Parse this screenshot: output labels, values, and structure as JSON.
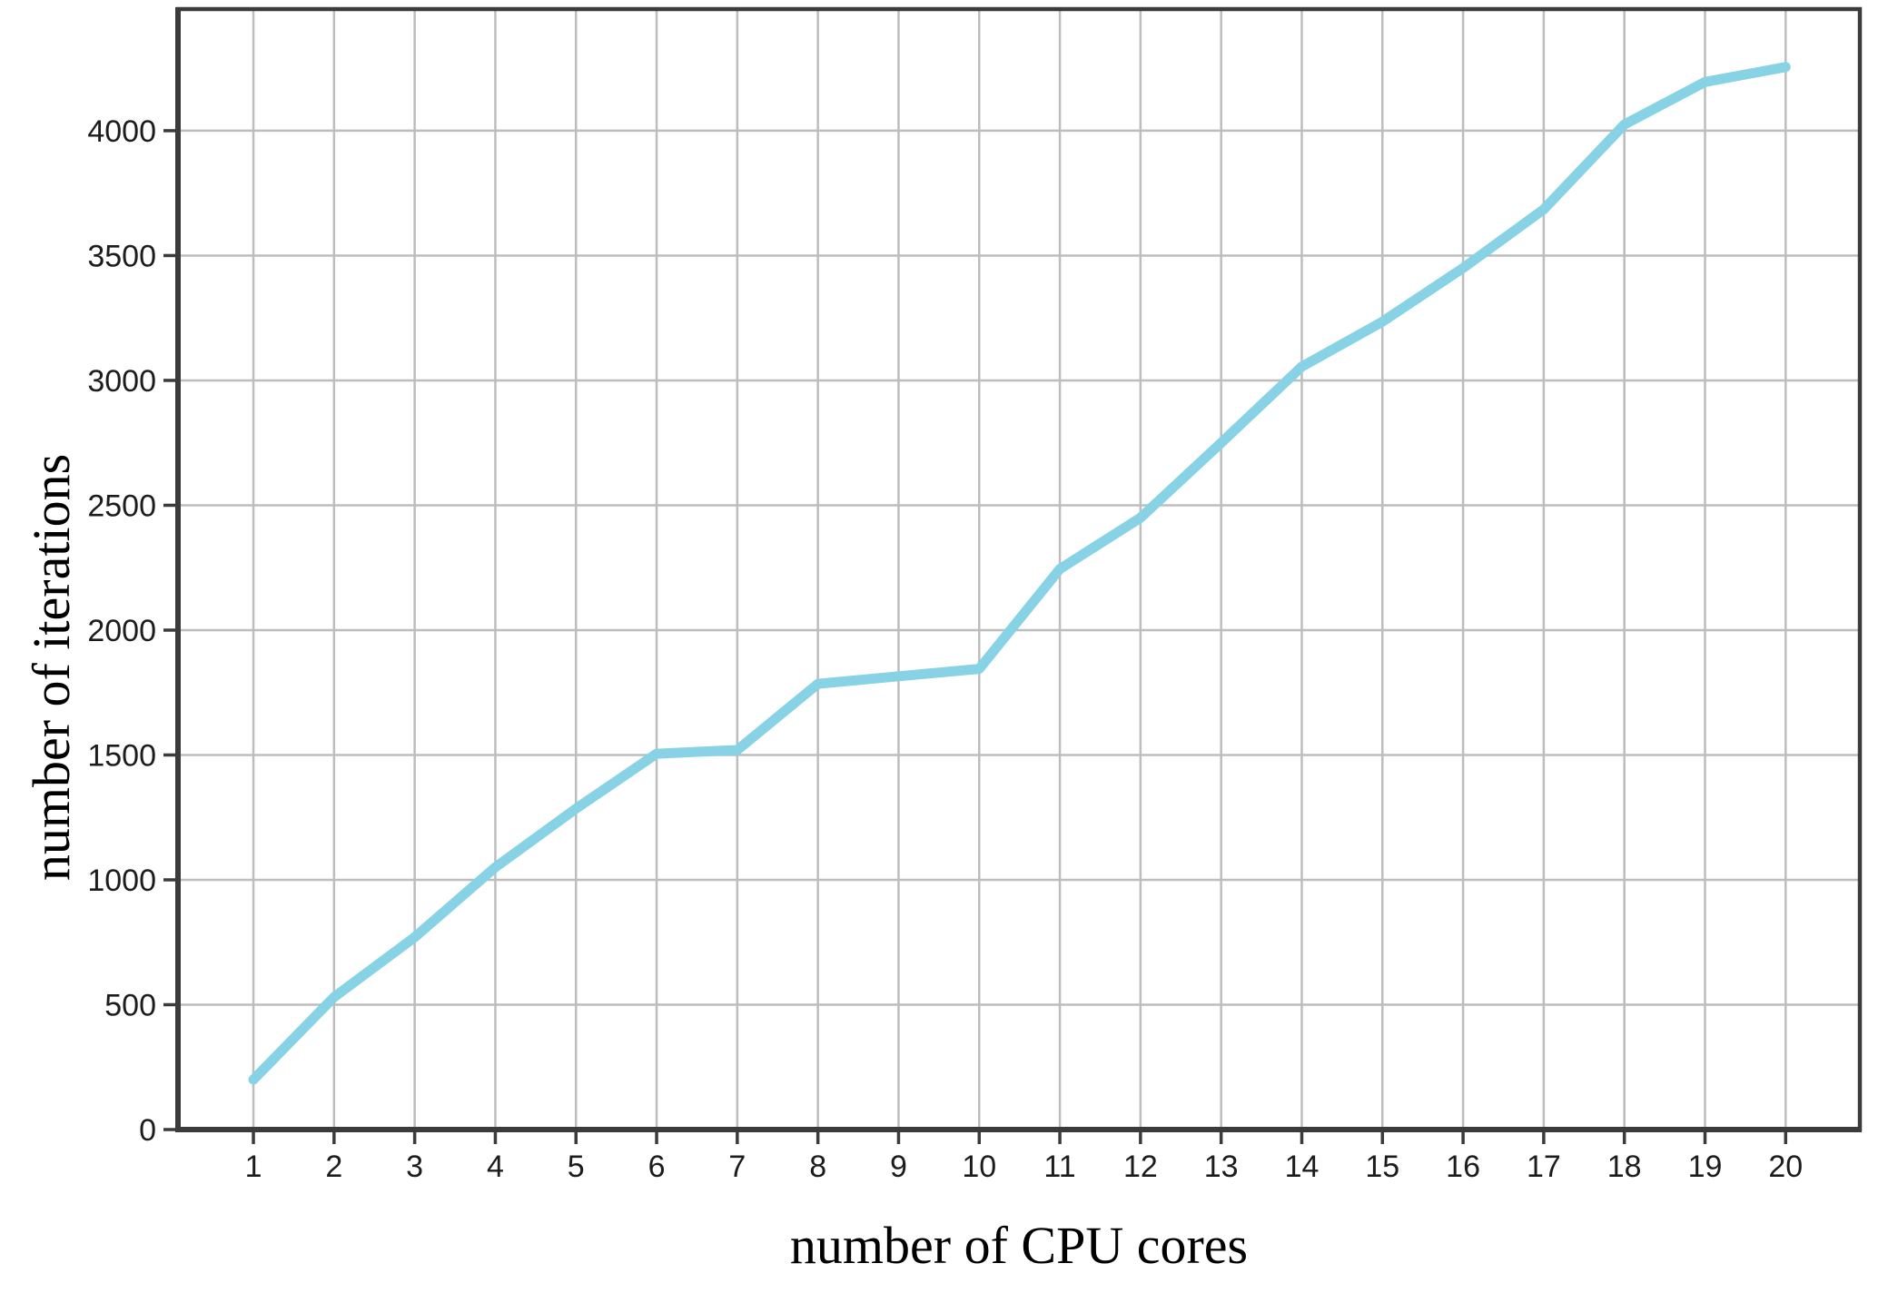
{
  "figure": {
    "background_color": "#ffffff"
  },
  "chart_data": {
    "type": "line",
    "title": "",
    "xlabel": "number of CPU cores",
    "ylabel": "number of iterations",
    "x": [
      1,
      2,
      3,
      4,
      5,
      6,
      7,
      8,
      9,
      10,
      11,
      12,
      13,
      14,
      15,
      16,
      17,
      18,
      19,
      20
    ],
    "series": [
      {
        "name": "iterations",
        "values": [
          200,
          530,
          770,
          1050,
          1285,
          1505,
          1520,
          1785,
          1815,
          1845,
          2245,
          2450,
          2750,
          3055,
          3235,
          3450,
          3685,
          4025,
          4195,
          4255
        ]
      }
    ],
    "x_ticks": [
      "1",
      "2",
      "3",
      "4",
      "5",
      "6",
      "7",
      "8",
      "9",
      "10",
      "11",
      "12",
      "13",
      "14",
      "15",
      "16",
      "17",
      "18",
      "19",
      "20"
    ],
    "y_ticks": [
      "0",
      "500",
      "1000",
      "1500",
      "2000",
      "2500",
      "3000",
      "3500",
      "4000"
    ],
    "y_tick_values": [
      0,
      500,
      1000,
      1500,
      2000,
      2500,
      3000,
      3500,
      4000
    ],
    "xlim": [
      0.065,
      20.92
    ],
    "ylim": [
      0,
      4487
    ],
    "grid": true,
    "legend": false,
    "line_color": "#87d2e4",
    "grid_color": "#bdbdbd",
    "axis_color": "#3b3b3b",
    "tick_label_color": "#1c1c1c",
    "line_width": 11
  }
}
